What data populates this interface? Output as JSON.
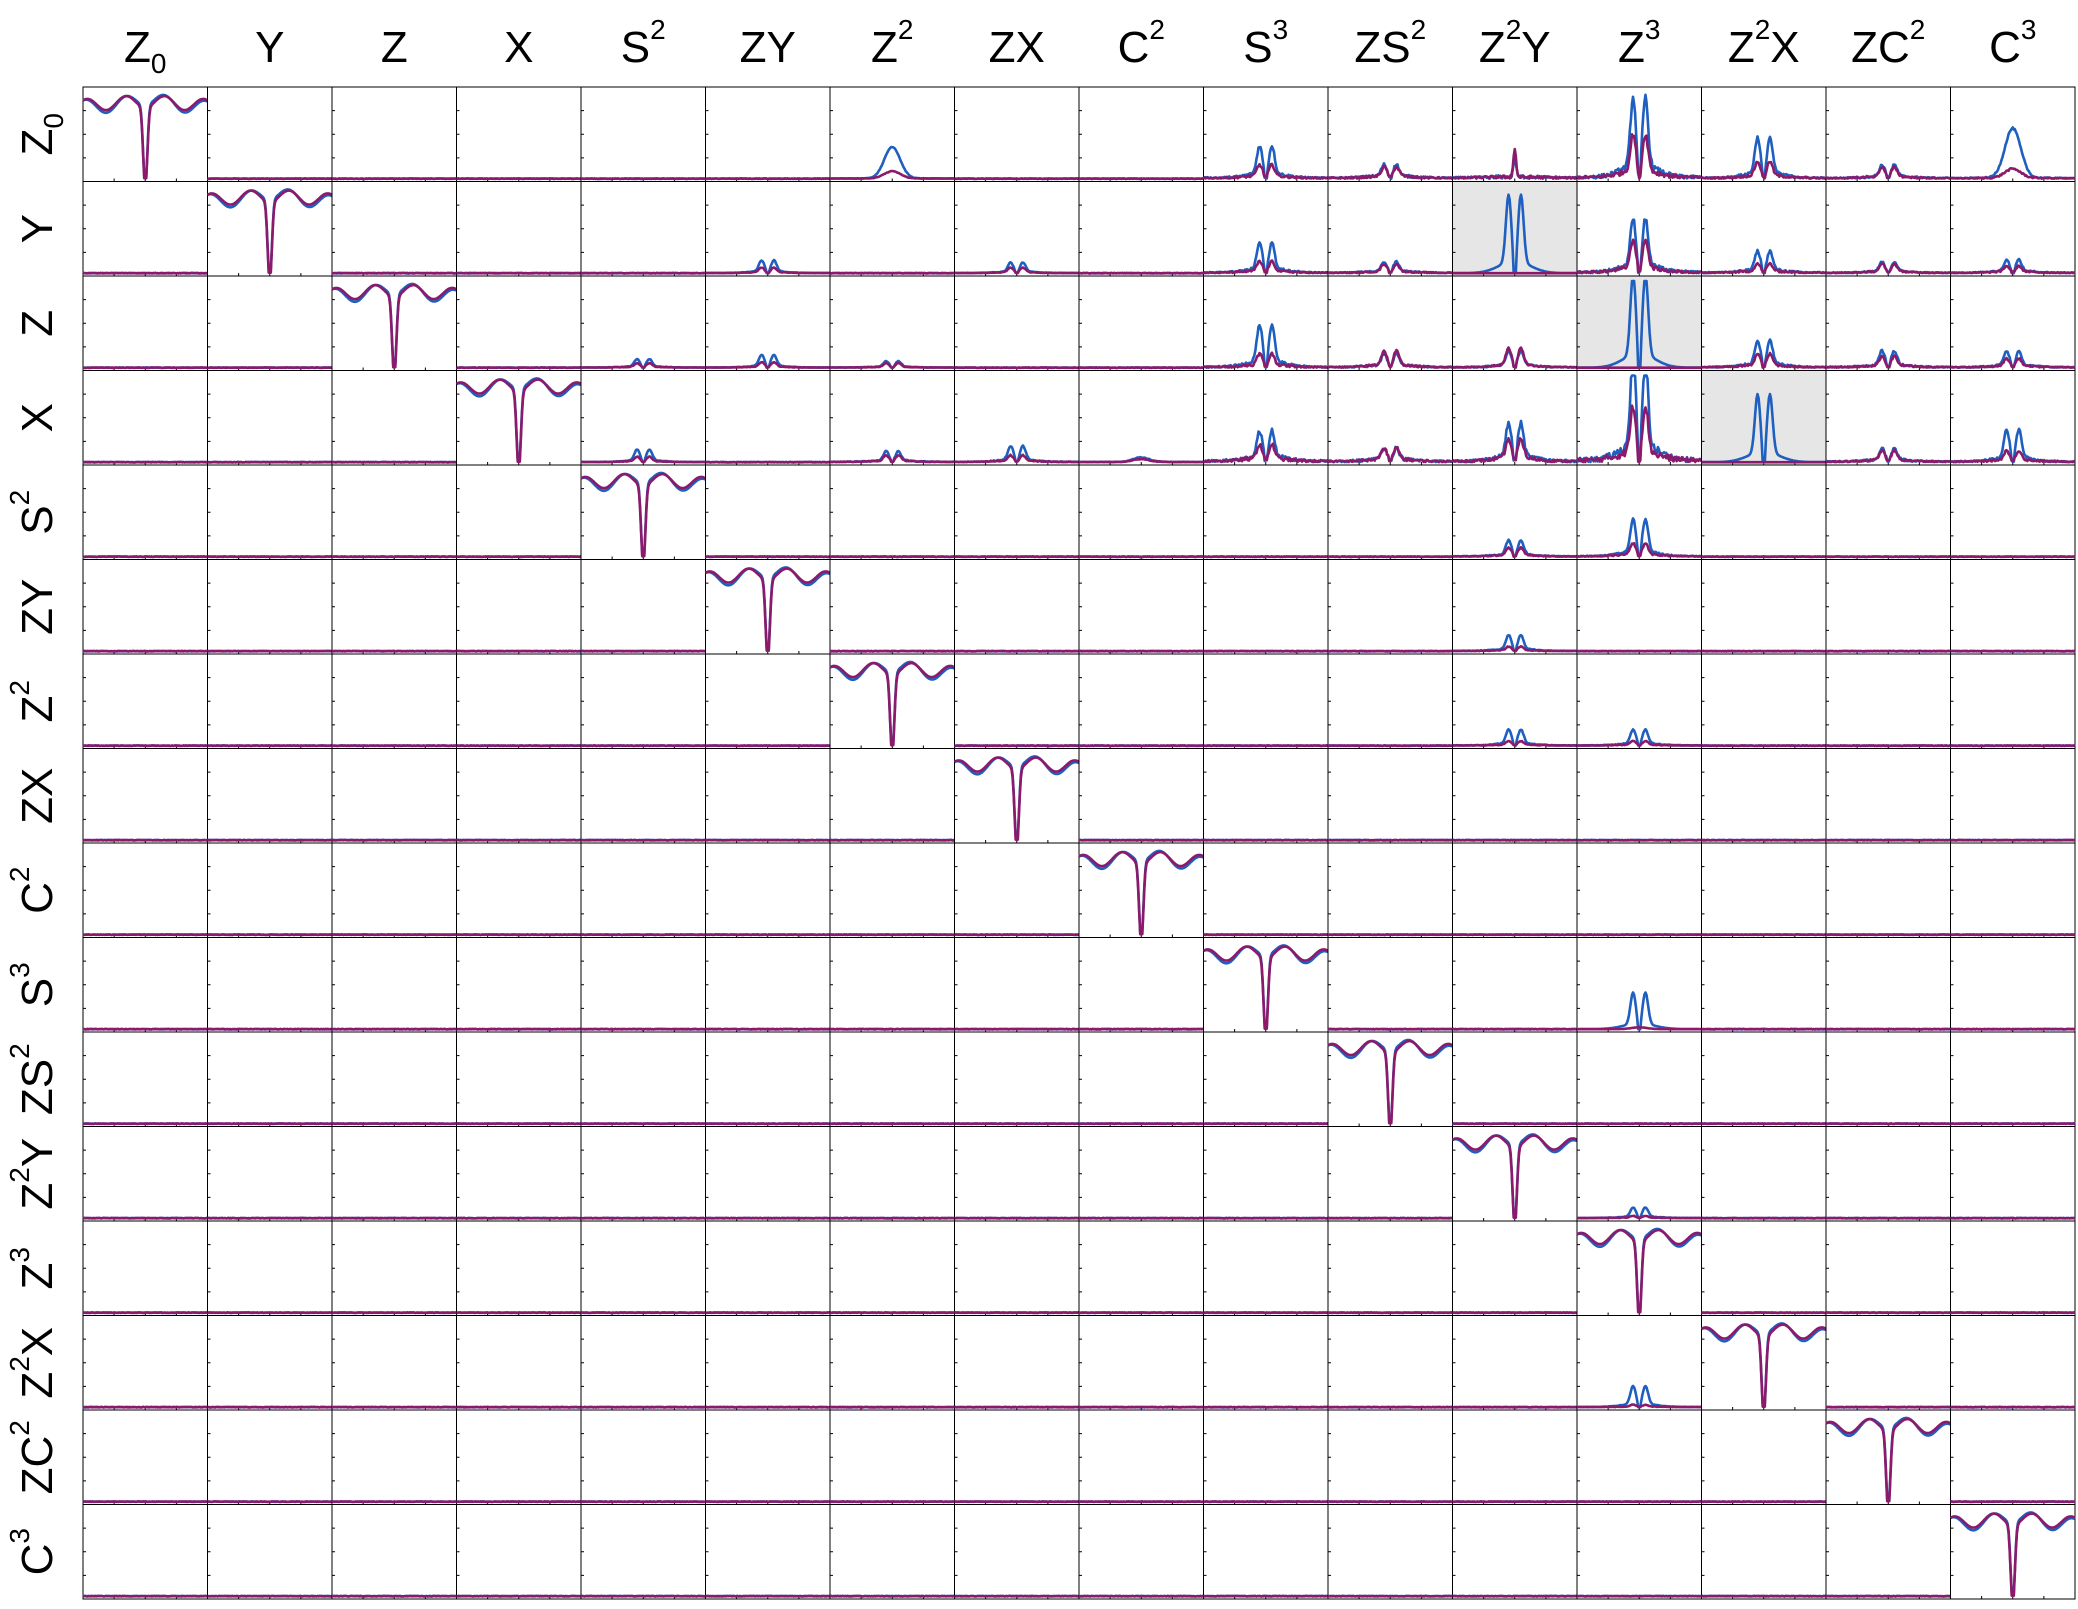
{
  "chart_data": {
    "type": "line",
    "layout": "16x16 matrix of small line plots",
    "grid": false,
    "legend": "none",
    "columns": [
      {
        "base": "Z",
        "sub": "0",
        "sup": ""
      },
      {
        "base": "Y",
        "sub": "",
        "sup": ""
      },
      {
        "base": "Z",
        "sub": "",
        "sup": ""
      },
      {
        "base": "X",
        "sub": "",
        "sup": ""
      },
      {
        "base": "S",
        "sub": "",
        "sup": "2"
      },
      {
        "base": "ZY",
        "sub": "",
        "sup": ""
      },
      {
        "base": "Z",
        "sub": "",
        "sup": "2"
      },
      {
        "base": "ZX",
        "sub": "",
        "sup": ""
      },
      {
        "base": "C",
        "sub": "",
        "sup": "2"
      },
      {
        "base": "S",
        "sub": "",
        "sup": "3"
      },
      {
        "base": "ZS",
        "sub": "",
        "sup": "2"
      },
      {
        "base": "Z",
        "sub": "",
        "sup": "2",
        "tail": "Y"
      },
      {
        "base": "Z",
        "sub": "",
        "sup": "3"
      },
      {
        "base": "Z",
        "sub": "",
        "sup": "2",
        "tail": "X"
      },
      {
        "base": "ZC",
        "sub": "",
        "sup": "2"
      },
      {
        "base": "C",
        "sub": "",
        "sup": "3"
      }
    ],
    "rows": [
      {
        "base": "Z",
        "sub": "0",
        "sup": ""
      },
      {
        "base": "Y",
        "sub": "",
        "sup": ""
      },
      {
        "base": "Z",
        "sub": "",
        "sup": ""
      },
      {
        "base": "X",
        "sub": "",
        "sup": ""
      },
      {
        "base": "S",
        "sub": "",
        "sup": "2"
      },
      {
        "base": "ZY",
        "sub": "",
        "sup": ""
      },
      {
        "base": "Z",
        "sub": "",
        "sup": "2"
      },
      {
        "base": "ZX",
        "sub": "",
        "sup": ""
      },
      {
        "base": "C",
        "sub": "",
        "sup": "2"
      },
      {
        "base": "S",
        "sub": "",
        "sup": "3"
      },
      {
        "base": "ZS",
        "sub": "",
        "sup": "2"
      },
      {
        "base": "Z",
        "sub": "",
        "sup": "2",
        "tail": "Y"
      },
      {
        "base": "Z",
        "sub": "",
        "sup": "3"
      },
      {
        "base": "Z",
        "sub": "",
        "sup": "2",
        "tail": "X"
      },
      {
        "base": "ZC",
        "sub": "",
        "sup": "2"
      },
      {
        "base": "C",
        "sub": "",
        "sup": "3"
      }
    ],
    "series": [
      {
        "color": "#1f5fbf"
      },
      {
        "color": "#8b1a6b"
      }
    ],
    "highlighted_cells": [
      {
        "row": 1,
        "col": 11
      },
      {
        "row": 2,
        "col": 12
      },
      {
        "row": 3,
        "col": 13
      }
    ],
    "highlight_color": "#e6e6e6",
    "off_diagonal_peaks": [
      {
        "row": 0,
        "col": 6,
        "blue": 0.35,
        "magenta": 0.08,
        "noise": 0.02,
        "shape": "bump"
      },
      {
        "row": 0,
        "col": 9,
        "blue": 0.3,
        "magenta": 0.12,
        "noise": 0.1,
        "shape": "double"
      },
      {
        "row": 0,
        "col": 10,
        "blue": 0.12,
        "magenta": 0.1,
        "noise": 0.1,
        "shape": "double"
      },
      {
        "row": 0,
        "col": 11,
        "blue": 0.22,
        "magenta": 0.32,
        "noise": 0.12,
        "shape": "spike"
      },
      {
        "row": 0,
        "col": 12,
        "blue": 0.75,
        "magenta": 0.4,
        "noise": 0.2,
        "shape": "double"
      },
      {
        "row": 0,
        "col": 13,
        "blue": 0.38,
        "magenta": 0.15,
        "noise": 0.1,
        "shape": "double"
      },
      {
        "row": 0,
        "col": 14,
        "blue": 0.12,
        "magenta": 0.1,
        "noise": 0.08,
        "shape": "double"
      },
      {
        "row": 0,
        "col": 15,
        "blue": 0.55,
        "magenta": 0.1,
        "noise": 0.06,
        "shape": "bump"
      },
      {
        "row": 1,
        "col": 5,
        "blue": 0.12,
        "magenta": 0.05,
        "noise": 0.02,
        "shape": "double"
      },
      {
        "row": 1,
        "col": 7,
        "blue": 0.1,
        "magenta": 0.05,
        "noise": 0.02,
        "shape": "double"
      },
      {
        "row": 1,
        "col": 9,
        "blue": 0.28,
        "magenta": 0.1,
        "noise": 0.08,
        "shape": "double"
      },
      {
        "row": 1,
        "col": 10,
        "blue": 0.1,
        "magenta": 0.08,
        "noise": 0.06,
        "shape": "double"
      },
      {
        "row": 1,
        "col": 11,
        "blue": 0.75,
        "magenta": 0.0,
        "noise": 0.0,
        "shape": "smooth-double"
      },
      {
        "row": 1,
        "col": 12,
        "blue": 0.5,
        "magenta": 0.3,
        "noise": 0.15,
        "shape": "double"
      },
      {
        "row": 1,
        "col": 13,
        "blue": 0.2,
        "magenta": 0.08,
        "noise": 0.08,
        "shape": "double"
      },
      {
        "row": 1,
        "col": 14,
        "blue": 0.1,
        "magenta": 0.08,
        "noise": 0.06,
        "shape": "double"
      },
      {
        "row": 1,
        "col": 15,
        "blue": 0.12,
        "magenta": 0.06,
        "noise": 0.06,
        "shape": "double"
      },
      {
        "row": 2,
        "col": 4,
        "blue": 0.08,
        "magenta": 0.04,
        "noise": 0.02,
        "shape": "double"
      },
      {
        "row": 2,
        "col": 5,
        "blue": 0.12,
        "magenta": 0.05,
        "noise": 0.02,
        "shape": "double"
      },
      {
        "row": 2,
        "col": 6,
        "blue": 0.06,
        "magenta": 0.04,
        "noise": 0.02,
        "shape": "double"
      },
      {
        "row": 2,
        "col": 9,
        "blue": 0.4,
        "magenta": 0.12,
        "noise": 0.1,
        "shape": "double"
      },
      {
        "row": 2,
        "col": 10,
        "blue": 0.12,
        "magenta": 0.15,
        "noise": 0.08,
        "shape": "double"
      },
      {
        "row": 2,
        "col": 11,
        "blue": 0.15,
        "magenta": 0.18,
        "noise": 0.06,
        "shape": "double"
      },
      {
        "row": 2,
        "col": 12,
        "blue": 0.9,
        "magenta": 0.0,
        "noise": 0.0,
        "shape": "smooth-double"
      },
      {
        "row": 2,
        "col": 13,
        "blue": 0.25,
        "magenta": 0.12,
        "noise": 0.08,
        "shape": "double"
      },
      {
        "row": 2,
        "col": 14,
        "blue": 0.15,
        "magenta": 0.1,
        "noise": 0.08,
        "shape": "double"
      },
      {
        "row": 2,
        "col": 15,
        "blue": 0.15,
        "magenta": 0.08,
        "noise": 0.06,
        "shape": "double"
      },
      {
        "row": 3,
        "col": 4,
        "blue": 0.12,
        "magenta": 0.05,
        "noise": 0.02,
        "shape": "double"
      },
      {
        "row": 3,
        "col": 6,
        "blue": 0.1,
        "magenta": 0.06,
        "noise": 0.04,
        "shape": "double"
      },
      {
        "row": 3,
        "col": 7,
        "blue": 0.15,
        "magenta": 0.06,
        "noise": 0.04,
        "shape": "double"
      },
      {
        "row": 3,
        "col": 8,
        "blue": 0.05,
        "magenta": 0.03,
        "noise": 0.02,
        "shape": "bump"
      },
      {
        "row": 3,
        "col": 9,
        "blue": 0.28,
        "magenta": 0.15,
        "noise": 0.15,
        "shape": "double"
      },
      {
        "row": 3,
        "col": 10,
        "blue": 0.12,
        "magenta": 0.12,
        "noise": 0.12,
        "shape": "double"
      },
      {
        "row": 3,
        "col": 11,
        "blue": 0.35,
        "magenta": 0.2,
        "noise": 0.15,
        "shape": "double"
      },
      {
        "row": 3,
        "col": 12,
        "blue": 0.95,
        "magenta": 0.5,
        "noise": 0.3,
        "shape": "double"
      },
      {
        "row": 3,
        "col": 13,
        "blue": 0.65,
        "magenta": 0.0,
        "noise": 0.0,
        "shape": "smooth-double"
      },
      {
        "row": 3,
        "col": 14,
        "blue": 0.12,
        "magenta": 0.1,
        "noise": 0.08,
        "shape": "double"
      },
      {
        "row": 3,
        "col": 15,
        "blue": 0.3,
        "magenta": 0.1,
        "noise": 0.08,
        "shape": "double"
      },
      {
        "row": 4,
        "col": 11,
        "blue": 0.15,
        "magenta": 0.08,
        "noise": 0.04,
        "shape": "double"
      },
      {
        "row": 4,
        "col": 12,
        "blue": 0.35,
        "magenta": 0.12,
        "noise": 0.06,
        "shape": "double"
      },
      {
        "row": 5,
        "col": 11,
        "blue": 0.15,
        "magenta": 0.04,
        "noise": 0.03,
        "shape": "double"
      },
      {
        "row": 6,
        "col": 11,
        "blue": 0.15,
        "magenta": 0.04,
        "noise": 0.03,
        "shape": "double"
      },
      {
        "row": 6,
        "col": 12,
        "blue": 0.15,
        "magenta": 0.04,
        "noise": 0.03,
        "shape": "double"
      },
      {
        "row": 9,
        "col": 12,
        "blue": 0.35,
        "magenta": 0.02,
        "noise": 0.0,
        "shape": "smooth-double"
      },
      {
        "row": 11,
        "col": 12,
        "blue": 0.1,
        "magenta": 0.02,
        "noise": 0.02,
        "shape": "double"
      },
      {
        "row": 13,
        "col": 12,
        "blue": 0.2,
        "magenta": 0.02,
        "noise": 0.02,
        "shape": "double"
      }
    ]
  }
}
